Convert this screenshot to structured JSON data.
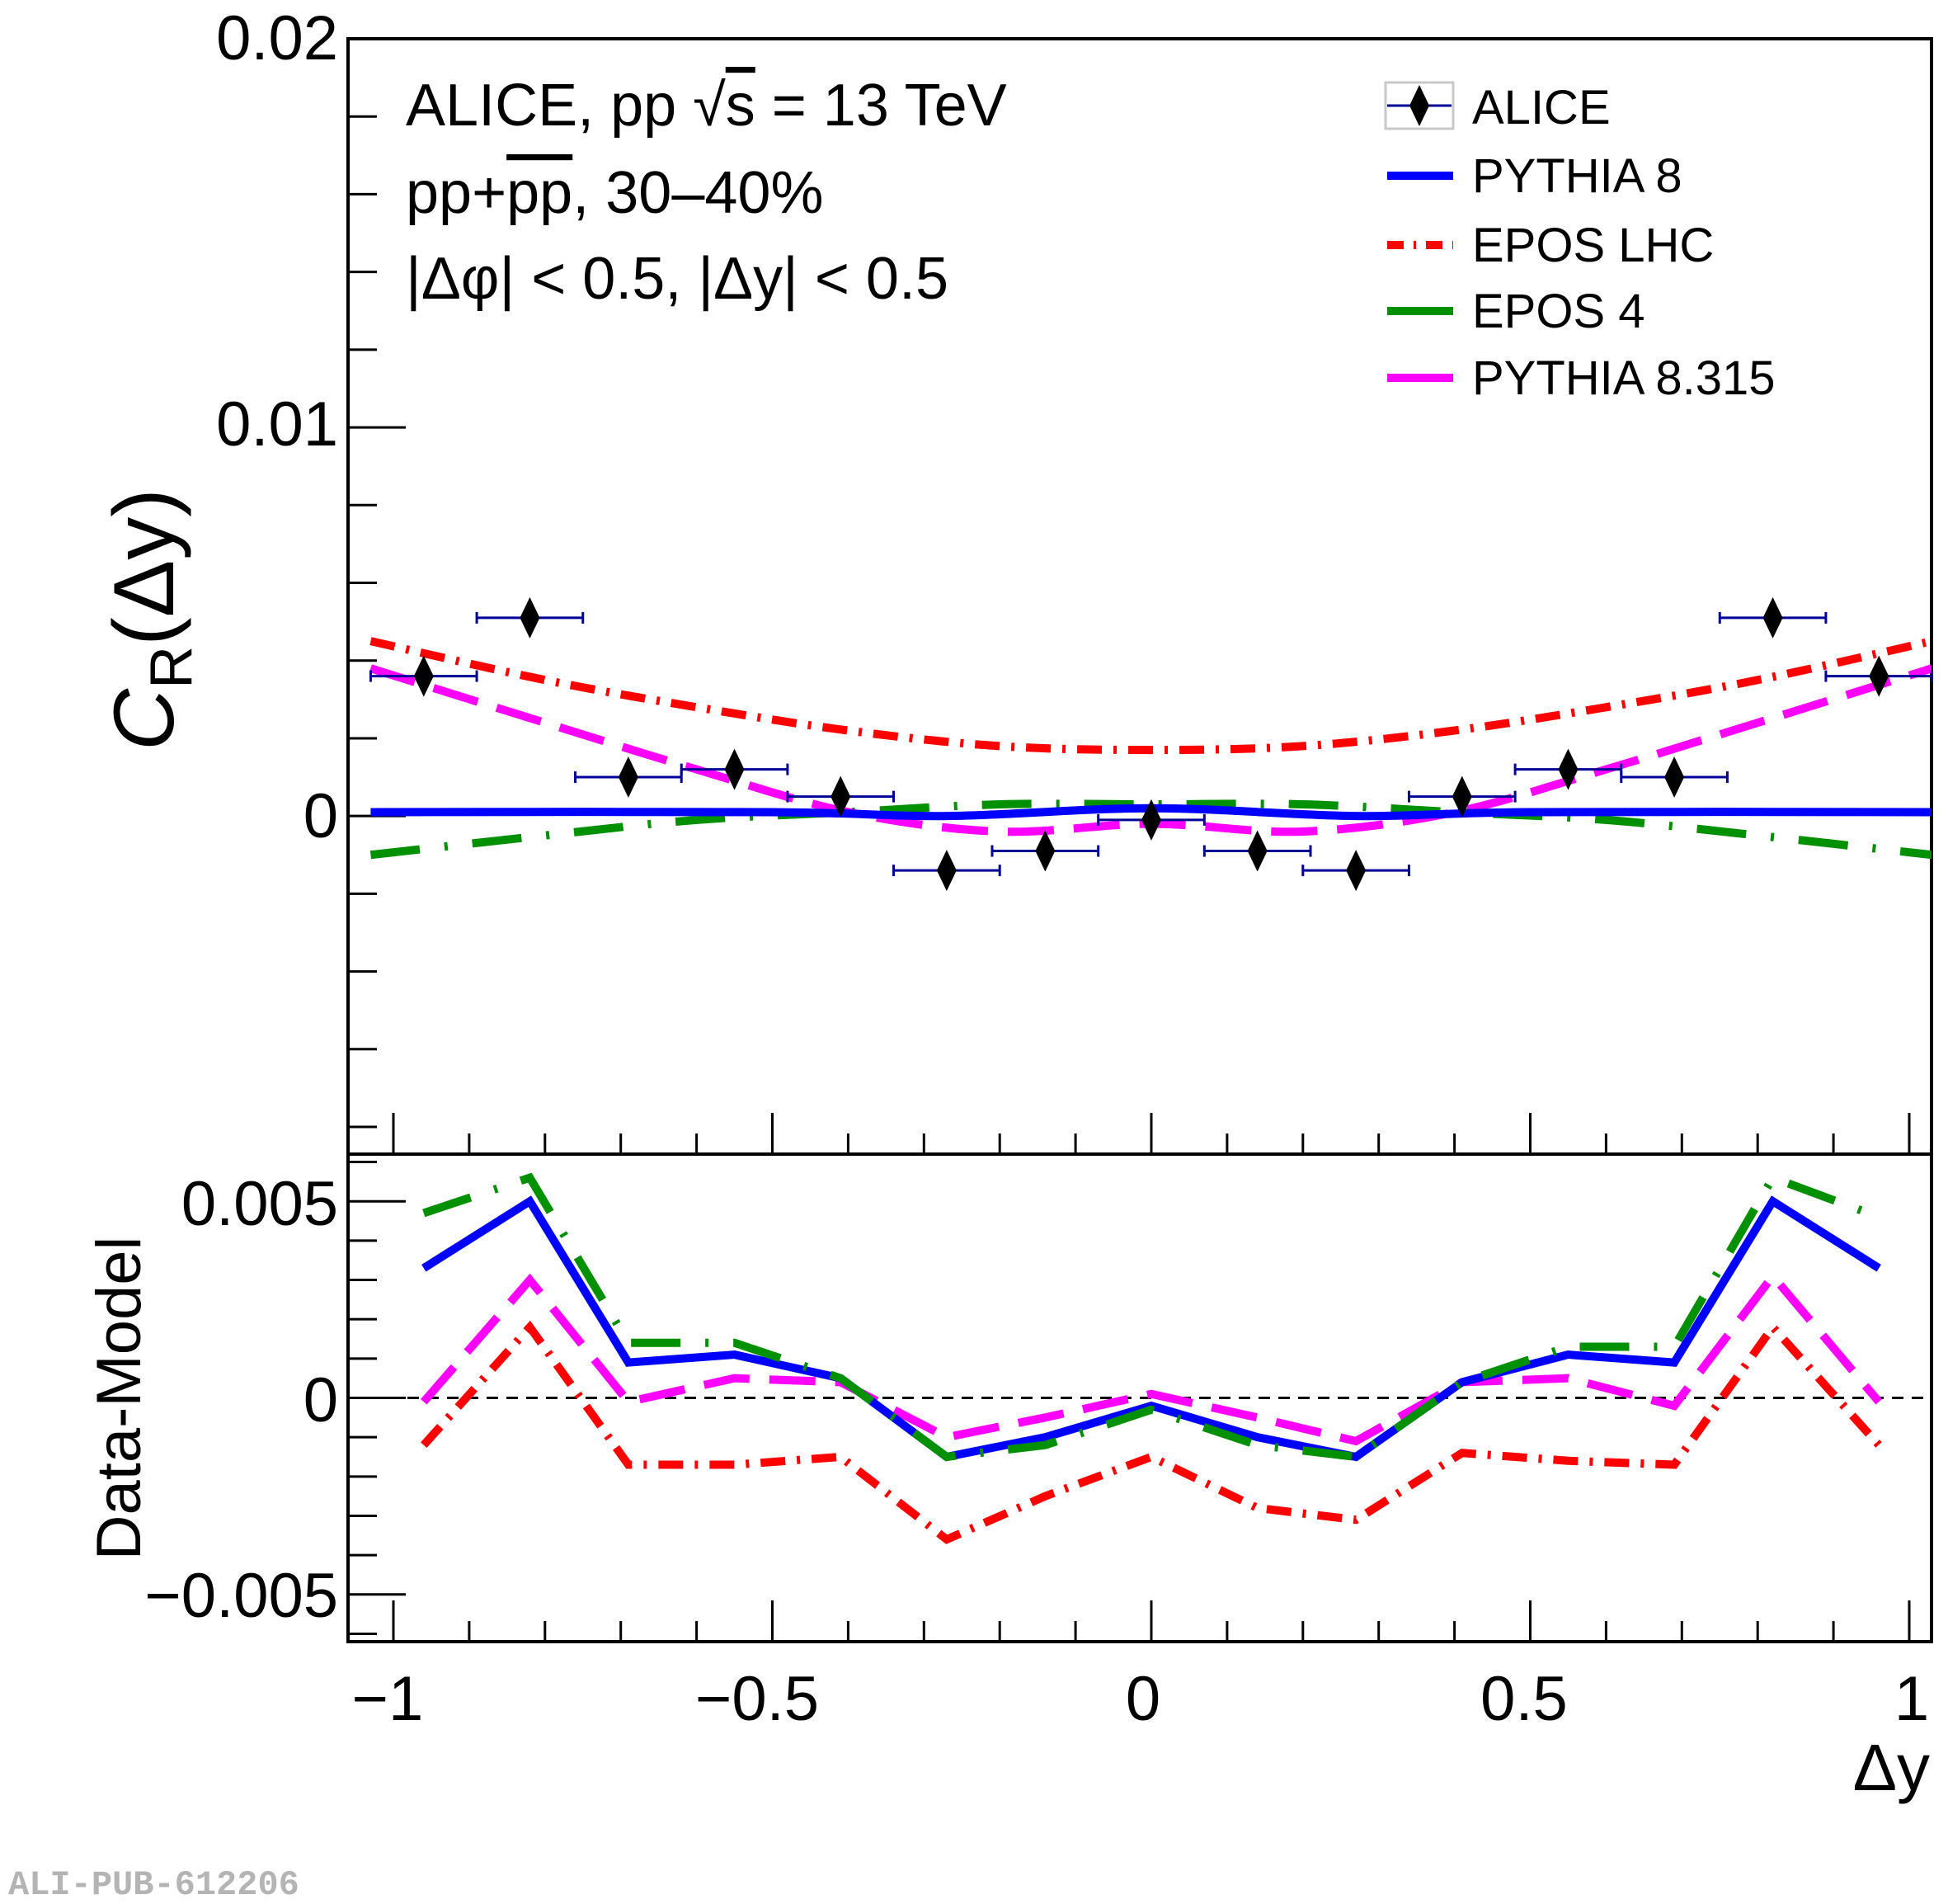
{
  "chart_data": [
    {
      "type": "scatter",
      "panel": "upper",
      "title": "",
      "xlabel": "Δy",
      "ylabel": "C_R(Δy)",
      "ylabel_main": "C",
      "ylabel_sub": "R",
      "ylabel_arg": "(Δy)",
      "xlim": [
        -1.05,
        1.03
      ],
      "ylim": [
        -0.0087,
        0.02
      ],
      "yticks": [
        0,
        0.01,
        0.02
      ],
      "ytick_labels": [
        "0",
        "0.01",
        "0.02"
      ],
      "grid": false,
      "annotations": [
        "ALICE, pp √s = 13 TeV",
        "pp+p̄p̄, 30–40%",
        "|Δφ| < 0.5, |Δy| < 0.5"
      ],
      "annotation_parts": {
        "line1_a": "ALICE, pp",
        "line1_sqrt": "s",
        "line1_b": "= 13 TeV",
        "line2_a": "pp+",
        "line2_bar": "pp",
        "line2_b": ", 30–40%",
        "line3": "|Δφ| < 0.5, |Δy| < 0.5"
      },
      "legend": {
        "placement": "top-right",
        "entries": [
          "ALICE",
          "PYTHIA 8",
          "EPOS LHC",
          "EPOS 4",
          "PYTHIA 8.315"
        ]
      },
      "data_points": {
        "name": "ALICE",
        "color": "#000000",
        "errorbar_color": "#000099",
        "x": [
          -0.96,
          -0.82,
          -0.69,
          -0.55,
          -0.41,
          -0.27,
          -0.14,
          0.0,
          0.14,
          0.27,
          0.41,
          0.55,
          0.69,
          0.82,
          0.96
        ],
        "y": [
          0.0036,
          0.0051,
          0.001,
          0.0012,
          0.0005,
          -0.0014,
          -0.0009,
          -0.0001,
          -0.0009,
          -0.0014,
          0.0005,
          0.0012,
          0.001,
          0.0051,
          0.0036
        ],
        "xerr": 0.07
      },
      "series": [
        {
          "name": "PYTHIA 8",
          "color": "#0000ff",
          "style": "solid",
          "x": [
            -1.03,
            -0.5,
            -0.27,
            0.0,
            0.27,
            0.5,
            1.03
          ],
          "y": [
            0.0001,
            0.0001,
            0.0,
            0.0002,
            0.0,
            0.0001,
            0.0001
          ]
        },
        {
          "name": "EPOS LHC",
          "color": "#ff0000",
          "style": "dashdot",
          "x": [
            -1.03,
            -0.8,
            -0.6,
            -0.4,
            -0.2,
            0.0,
            0.2,
            0.4,
            0.6,
            0.8,
            1.03
          ],
          "y": [
            0.0045,
            0.0035,
            0.0028,
            0.0022,
            0.0018,
            0.0017,
            0.0018,
            0.0022,
            0.0028,
            0.0035,
            0.0045
          ]
        },
        {
          "name": "EPOS 4",
          "color": "#009000",
          "style": "longdashdot",
          "x": [
            -1.03,
            -0.8,
            -0.6,
            -0.4,
            -0.2,
            0.0,
            0.2,
            0.4,
            0.6,
            0.8,
            1.03
          ],
          "y": [
            -0.001,
            -0.0005,
            -0.0001,
            0.0001,
            0.0003,
            0.0003,
            0.0003,
            0.0001,
            -0.0001,
            -0.0005,
            -0.001
          ]
        },
        {
          "name": "PYTHIA 8.315",
          "color": "#ff00ff",
          "style": "longdash",
          "x": [
            -1.03,
            -0.8,
            -0.6,
            -0.4,
            -0.2,
            0.0,
            0.2,
            0.4,
            0.6,
            0.8,
            1.03
          ],
          "y": [
            0.0038,
            0.0024,
            0.0012,
            0.0001,
            -0.0004,
            -0.0002,
            -0.0004,
            0.0001,
            0.0012,
            0.0024,
            0.0038
          ]
        }
      ]
    },
    {
      "type": "line",
      "panel": "lower",
      "xlabel": "Δy",
      "ylabel": "Data-Model",
      "xlim": [
        -1.05,
        1.03
      ],
      "ylim": [
        -0.0062,
        0.0062
      ],
      "xticks": [
        -1,
        -0.5,
        0,
        0.5,
        1
      ],
      "xtick_labels": [
        "−1",
        "−0.5",
        "0",
        "0.5",
        "1"
      ],
      "yticks": [
        -0.005,
        0,
        0.005
      ],
      "ytick_labels": [
        "−0.005",
        "0",
        "0.005"
      ],
      "reference_line": 0,
      "x": [
        -0.96,
        -0.82,
        -0.69,
        -0.55,
        -0.41,
        -0.27,
        -0.14,
        0.0,
        0.14,
        0.27,
        0.41,
        0.55,
        0.69,
        0.82,
        0.96
      ],
      "series": [
        {
          "name": "PYTHIA 8",
          "color": "#0000ff",
          "style": "solid",
          "values": [
            0.0033,
            0.005,
            0.0009,
            0.0011,
            0.0005,
            -0.0015,
            -0.001,
            -0.0002,
            -0.001,
            -0.0015,
            0.0004,
            0.0011,
            0.0009,
            0.005,
            0.0033
          ]
        },
        {
          "name": "EPOS LHC",
          "color": "#ff0000",
          "style": "dashdot",
          "values": [
            -0.0012,
            0.0018,
            -0.0017,
            -0.0017,
            -0.0015,
            -0.0036,
            -0.0025,
            -0.0015,
            -0.0028,
            -0.0031,
            -0.0014,
            -0.0016,
            -0.0017,
            0.0018,
            -0.0012
          ]
        },
        {
          "name": "EPOS 4",
          "color": "#009000",
          "style": "longdashdot",
          "values": [
            0.0047,
            0.0056,
            0.0014,
            0.0014,
            0.0005,
            -0.0015,
            -0.0012,
            -0.0003,
            -0.0012,
            -0.0015,
            0.0004,
            0.0013,
            0.0013,
            0.0056,
            0.0046
          ]
        },
        {
          "name": "PYTHIA 8.315",
          "color": "#ff00ff",
          "style": "longdash",
          "values": [
            -0.0001,
            0.003,
            -0.0001,
            0.0005,
            0.0004,
            -0.001,
            -0.0005,
            0.0001,
            -0.0005,
            -0.0011,
            0.0004,
            0.0005,
            -0.0002,
            0.0031,
            -0.0001
          ]
        }
      ]
    }
  ],
  "watermark": "ALI-PUB-612206"
}
